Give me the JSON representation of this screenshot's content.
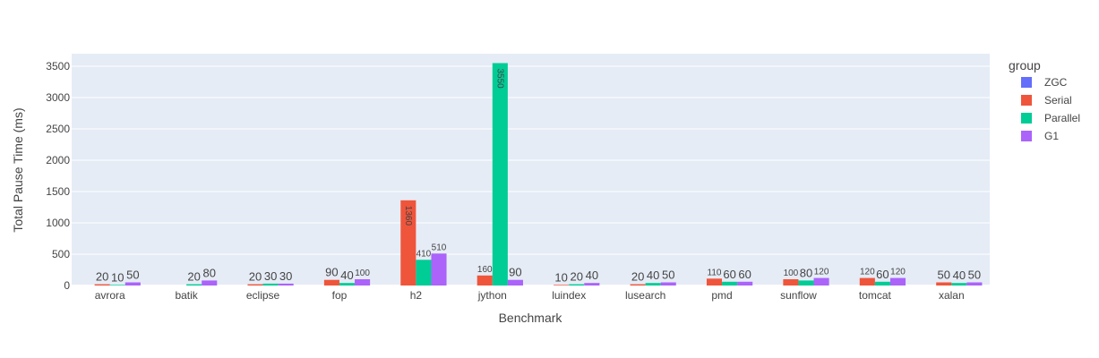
{
  "chart_data": {
    "type": "bar",
    "xlabel": "Benchmark",
    "ylabel": "Total Pause Time (ms)",
    "ylim": [
      0,
      3700
    ],
    "yticks": [
      0,
      500,
      1000,
      1500,
      2000,
      2500,
      3000,
      3500
    ],
    "grid": true,
    "legend_title": "group",
    "legend_position": "right",
    "categories": [
      "avrora",
      "batik",
      "eclipse",
      "fop",
      "h2",
      "jython",
      "luindex",
      "lusearch",
      "pmd",
      "sunflow",
      "tomcat",
      "xalan"
    ],
    "series": [
      {
        "name": "ZGC",
        "color": "#636efa",
        "values": [
          0,
          0,
          0,
          0,
          0,
          0,
          0,
          0,
          0,
          0,
          0,
          0
        ]
      },
      {
        "name": "Serial",
        "color": "#ef553b",
        "values": [
          20,
          0,
          20,
          90,
          1360,
          160,
          10,
          20,
          110,
          100,
          120,
          50
        ]
      },
      {
        "name": "Parallel",
        "color": "#00cc96",
        "values": [
          10,
          20,
          30,
          40,
          410,
          3550,
          20,
          40,
          60,
          80,
          60,
          40
        ]
      },
      {
        "name": "G1",
        "color": "#ab63fa",
        "values": [
          50,
          80,
          30,
          100,
          510,
          90,
          40,
          50,
          60,
          120,
          120,
          50
        ]
      }
    ]
  }
}
